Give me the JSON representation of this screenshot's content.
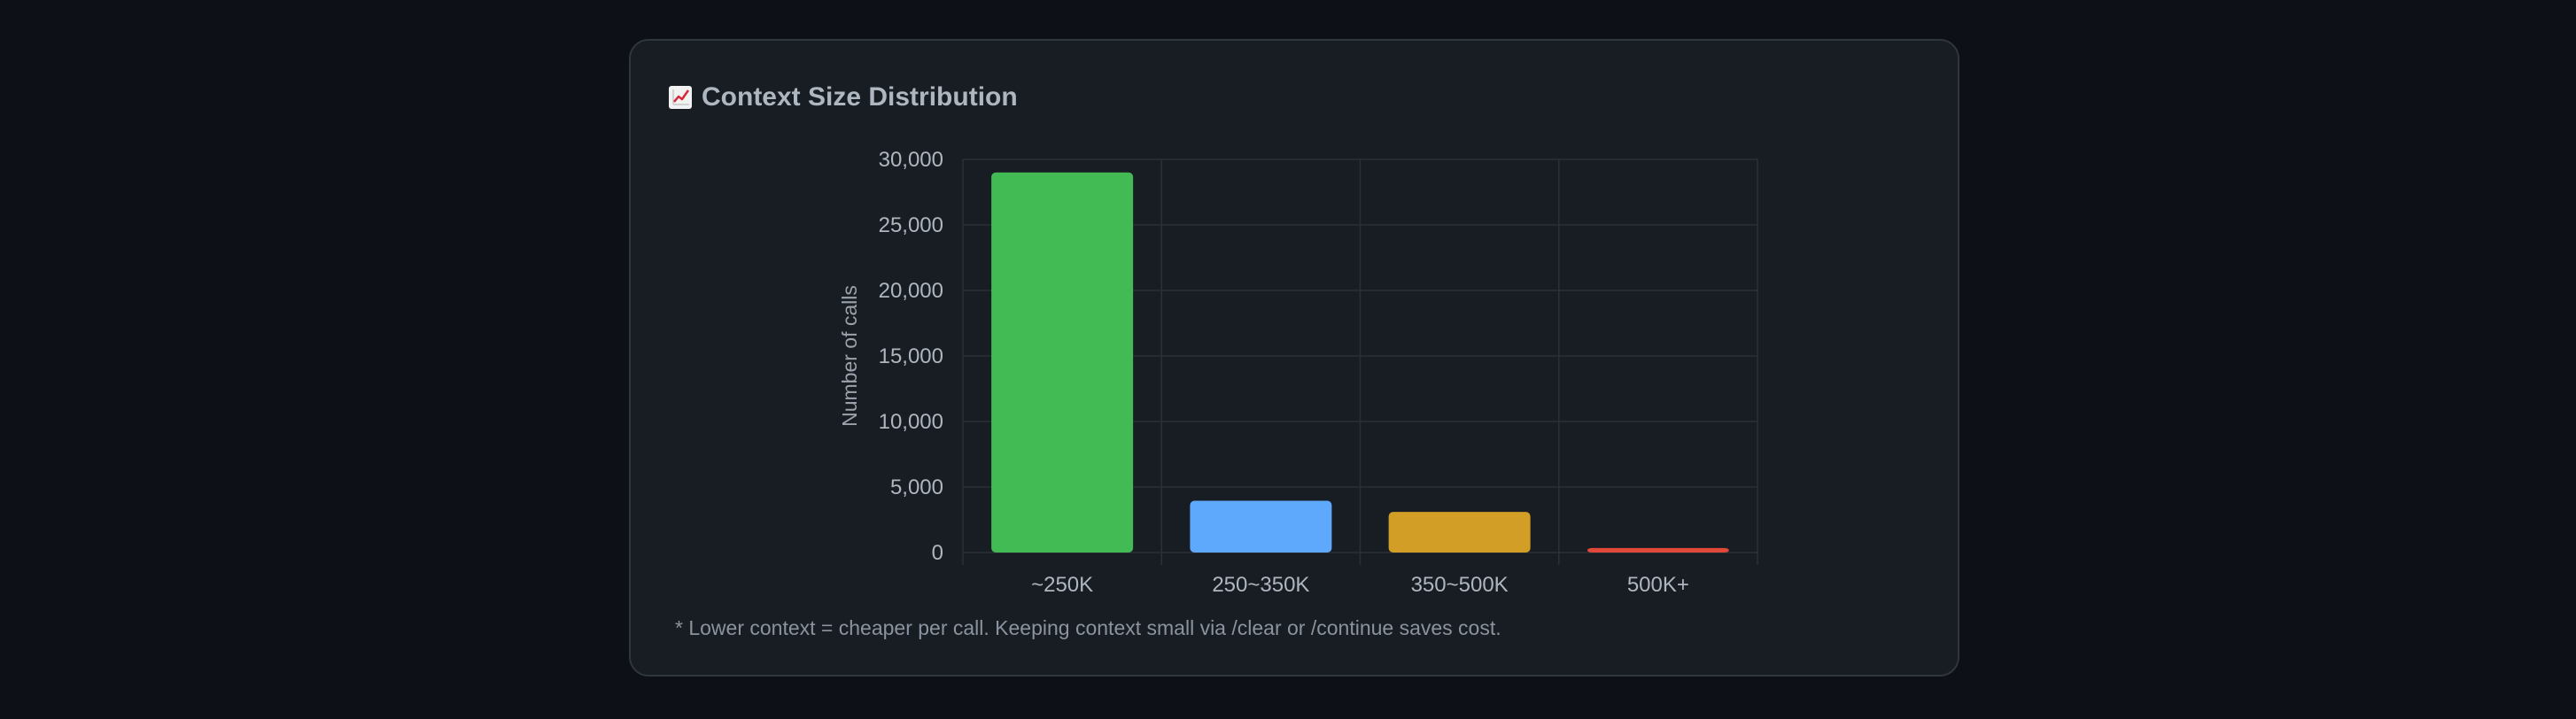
{
  "card": {
    "title": "Context Size Distribution",
    "title_icon": "chart-increasing-icon",
    "footnote": "* Lower context = cheaper per call. Keeping context small via /clear or /continue saves cost."
  },
  "chart_data": {
    "type": "bar",
    "categories": [
      "~250K",
      "250~350K",
      "350~500K",
      "500K+"
    ],
    "values": [
      29000,
      3950,
      3100,
      350
    ],
    "colors": [
      "#43bb55",
      "#5ea9fb",
      "#d39e26",
      "#e0493a"
    ],
    "ylabel": "Number of calls",
    "xlabel": "",
    "ylim": [
      0,
      30000
    ],
    "yticks": [
      0,
      5000,
      10000,
      15000,
      20000,
      25000,
      30000
    ],
    "ytick_labels": [
      "0",
      "5,000",
      "10,000",
      "15,000",
      "20,000",
      "25,000",
      "30,000"
    ],
    "grid": true,
    "legend": "none"
  }
}
